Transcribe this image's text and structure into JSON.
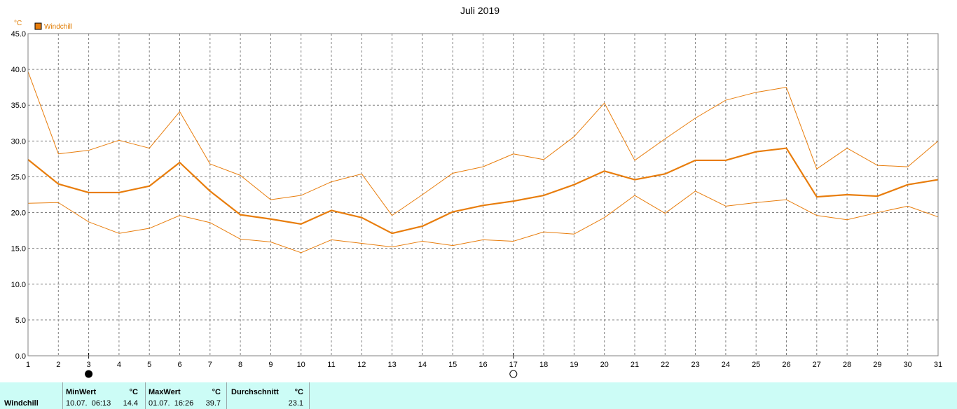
{
  "chart_data": {
    "type": "line",
    "title": "Juli 2019",
    "ylabel": "°C",
    "ylim": [
      0,
      45
    ],
    "yticks": [
      "0.0",
      "5.0",
      "10.0",
      "15.0",
      "20.0",
      "25.0",
      "30.0",
      "35.0",
      "40.0",
      "45.0"
    ],
    "ytick_values": [
      0,
      5,
      10,
      15,
      20,
      25,
      30,
      35,
      40,
      45
    ],
    "x": [
      1,
      2,
      3,
      4,
      5,
      6,
      7,
      8,
      9,
      10,
      11,
      12,
      13,
      14,
      15,
      16,
      17,
      18,
      19,
      20,
      21,
      22,
      23,
      24,
      25,
      26,
      27,
      28,
      29,
      30,
      31
    ],
    "grid": true,
    "legend": "top-left",
    "series": [
      {
        "name": "Windchill",
        "role": "mean",
        "color": "#e87d0c",
        "values": [
          27.4,
          24.0,
          22.8,
          22.8,
          23.7,
          27.0,
          23.0,
          19.7,
          19.1,
          18.4,
          20.3,
          19.3,
          17.1,
          18.1,
          20.1,
          21.0,
          21.6,
          22.4,
          23.9,
          25.8,
          24.6,
          25.4,
          27.3,
          27.3,
          28.5,
          29.0,
          22.2,
          22.5,
          22.3,
          23.9,
          24.6
        ]
      },
      {
        "role": "max",
        "color": "#e87d0c",
        "values": [
          39.7,
          28.2,
          28.7,
          30.1,
          29.0,
          34.1,
          26.8,
          25.2,
          21.8,
          22.4,
          24.3,
          25.4,
          19.6,
          22.5,
          25.5,
          26.4,
          28.2,
          27.4,
          30.6,
          35.3,
          27.3,
          30.3,
          33.2,
          35.7,
          36.8,
          37.5,
          26.1,
          29.0,
          26.6,
          26.4,
          30.0
        ]
      },
      {
        "role": "min",
        "color": "#e87d0c",
        "values": [
          21.3,
          21.4,
          18.7,
          17.1,
          17.8,
          19.6,
          18.6,
          16.3,
          15.9,
          14.4,
          16.2,
          15.7,
          15.2,
          16.0,
          15.4,
          16.2,
          16.0,
          17.3,
          17.0,
          19.3,
          22.4,
          19.9,
          23.0,
          20.9,
          21.4,
          21.8,
          19.6,
          19.0,
          20.0,
          20.9,
          19.4
        ]
      }
    ],
    "markers": [
      {
        "x": 3,
        "symbol": "full-moon"
      },
      {
        "x": 17,
        "symbol": "new-moon"
      }
    ]
  },
  "stats": {
    "row_label": "Windchill",
    "min": {
      "header": "MinWert",
      "unit": "°C",
      "datetime": "10.07.  06:13",
      "value": "14.4"
    },
    "max": {
      "header": "MaxWert",
      "unit": "°C",
      "datetime": "01.07.  16:26",
      "value": "39.7"
    },
    "avg": {
      "header": "Durchschnitt",
      "unit": "°C",
      "value": "23.1"
    }
  }
}
